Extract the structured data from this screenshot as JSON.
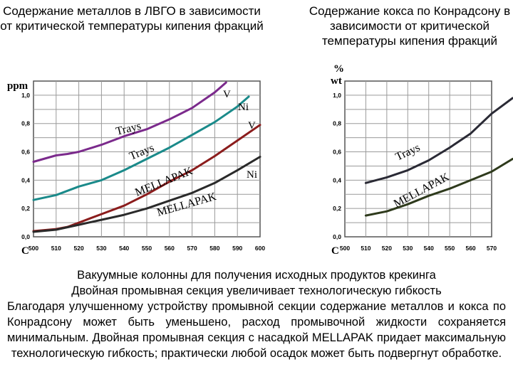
{
  "titles": {
    "left": "Содержание металлов в ЛВГО в зависимости от критической температуры кипения фракций",
    "right": "Содержание кокса по Конрадсону в зависимости от критической температуры кипения фракций"
  },
  "caption": {
    "line1": "Вакуумные колонны для получения исходных продуктов крекинга",
    "line2": "Двойная промывная секция увеличивает технологическую гибкость",
    "para": "Благодаря улучшенному устройству промывной секции содержание металлов и кокса по Конрадсону может быть уменьшено, расход промывочной жидкости сохраняется минимальным. Двойная промывная секция с насадкой MELLAPAK придает максимальную технологическую гибкость; практически любой осадок может быть подвергнут обработке."
  },
  "chart_data": [
    {
      "type": "line",
      "ylabel": "ppm",
      "xlabel": "C",
      "x_ticks": [
        "500",
        "510",
        "520",
        "530",
        "540",
        "550",
        "560",
        "570",
        "580",
        "590",
        "600"
      ],
      "y_ticks": [
        "0,0",
        "0,2",
        "0,4",
        "0,6",
        "0,8",
        "1,0"
      ],
      "xlim": [
        500,
        600
      ],
      "ylim": [
        0,
        1.1
      ],
      "grid": true,
      "series": [
        {
          "name": "V",
          "group": "Trays",
          "color": "#7b2a8c",
          "points": [
            [
              500,
              0.53
            ],
            [
              510,
              0.575
            ],
            [
              515,
              0.585
            ],
            [
              520,
              0.6
            ],
            [
              530,
              0.65
            ],
            [
              540,
              0.71
            ],
            [
              550,
              0.76
            ],
            [
              560,
              0.83
            ],
            [
              570,
              0.91
            ],
            [
              580,
              1.02
            ],
            [
              585,
              1.09
            ]
          ]
        },
        {
          "name": "Ni",
          "group": "Trays",
          "color": "#1a8a8a",
          "points": [
            [
              500,
              0.26
            ],
            [
              510,
              0.295
            ],
            [
              520,
              0.355
            ],
            [
              530,
              0.4
            ],
            [
              540,
              0.47
            ],
            [
              550,
              0.55
            ],
            [
              560,
              0.63
            ],
            [
              570,
              0.72
            ],
            [
              580,
              0.81
            ],
            [
              590,
              0.92
            ],
            [
              595,
              0.99
            ]
          ]
        },
        {
          "name": "V",
          "group": "MELLAPAK",
          "color": "#8b1c1c",
          "points": [
            [
              500,
              0.04
            ],
            [
              510,
              0.055
            ],
            [
              515,
              0.07
            ],
            [
              520,
              0.1
            ],
            [
              530,
              0.16
            ],
            [
              540,
              0.22
            ],
            [
              550,
              0.3
            ],
            [
              560,
              0.39
            ],
            [
              570,
              0.47
            ],
            [
              580,
              0.57
            ],
            [
              590,
              0.68
            ],
            [
              600,
              0.79
            ]
          ]
        },
        {
          "name": "Ni",
          "group": "MELLAPAK",
          "color": "#2a2a2a",
          "points": [
            [
              500,
              0.035
            ],
            [
              510,
              0.05
            ],
            [
              520,
              0.085
            ],
            [
              530,
              0.12
            ],
            [
              540,
              0.155
            ],
            [
              550,
              0.2
            ],
            [
              560,
              0.255
            ],
            [
              570,
              0.31
            ],
            [
              580,
              0.38
            ],
            [
              590,
              0.47
            ],
            [
              600,
              0.565
            ]
          ]
        }
      ],
      "annotations": [
        "V",
        "Ni",
        "V",
        "Ni",
        "Trays",
        "Trays",
        "MELLAPAK",
        "MELLAPAK"
      ]
    },
    {
      "type": "line",
      "ylabel": "% wt",
      "xlabel": "C",
      "x_ticks": [
        "500",
        "510",
        "520",
        "530",
        "540",
        "550",
        "560",
        "570"
      ],
      "y_ticks": [
        "0,0",
        "0,2",
        "0,4",
        "0,6",
        "0,8",
        "1,0"
      ],
      "xlim": [
        500,
        570
      ],
      "ylim": [
        0,
        1.1
      ],
      "grid": true,
      "series": [
        {
          "name": "Trays",
          "color": "#2a2a35",
          "points": [
            [
              510,
              0.38
            ],
            [
              520,
              0.42
            ],
            [
              530,
              0.47
            ],
            [
              540,
              0.54
            ],
            [
              550,
              0.63
            ],
            [
              560,
              0.73
            ],
            [
              570,
              0.87
            ],
            [
              580,
              0.98
            ]
          ]
        },
        {
          "name": "MELLAPAK",
          "color": "#2e3a1c",
          "points": [
            [
              510,
              0.15
            ],
            [
              520,
              0.18
            ],
            [
              530,
              0.23
            ],
            [
              540,
              0.29
            ],
            [
              550,
              0.34
            ],
            [
              560,
              0.4
            ],
            [
              570,
              0.46
            ],
            [
              580,
              0.55
            ]
          ]
        }
      ],
      "annotations": [
        "Trays",
        "MELLAPAK"
      ]
    }
  ]
}
